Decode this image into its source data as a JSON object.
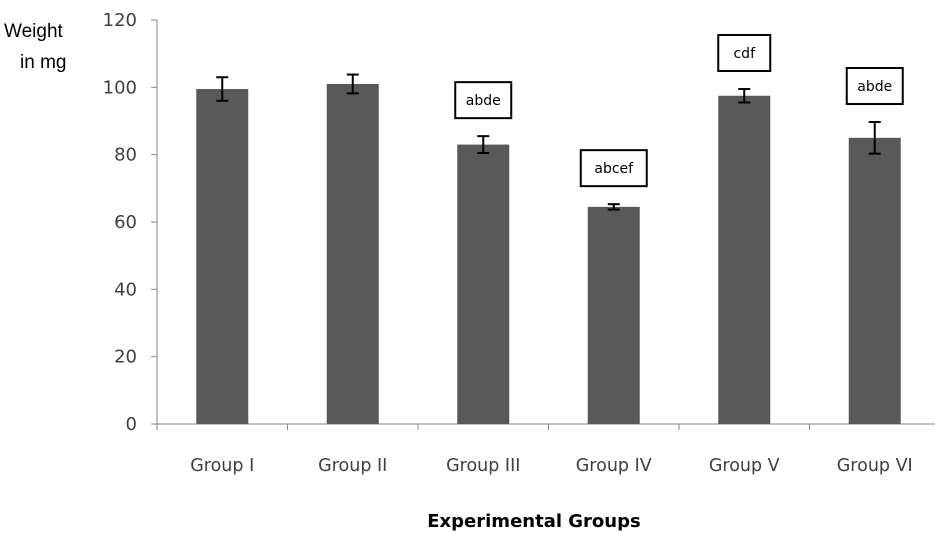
{
  "chart_data": {
    "type": "bar",
    "xlabel": "Experimental Groups",
    "ylabel_lines": [
      "Weight",
      "in mg"
    ],
    "categories": [
      "Group I",
      "Group II",
      "Group III",
      "Group IV",
      "Group V",
      "Group VI"
    ],
    "values": [
      99.5,
      101,
      83,
      64.5,
      97.5,
      85
    ],
    "errors": [
      3.5,
      2.8,
      2.5,
      0.8,
      2.0,
      4.7
    ],
    "annotations": [
      "",
      "",
      "abde",
      "abcef",
      "cdf",
      "abde"
    ],
    "ylim": [
      0,
      120
    ],
    "yticks": [
      0,
      20,
      40,
      60,
      80,
      100,
      120
    ],
    "bar_color": "#595959",
    "axis_color": "#868686",
    "grid": false,
    "legend": "none"
  }
}
